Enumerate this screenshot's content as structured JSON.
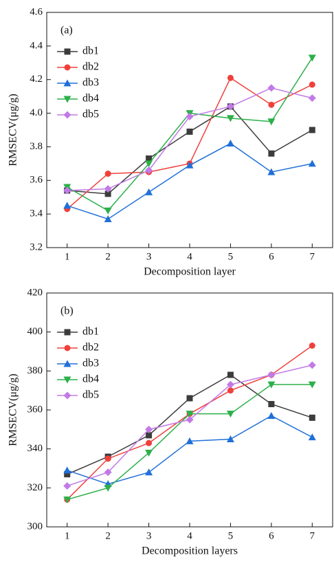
{
  "chart_data": [
    {
      "type": "line",
      "annotation": "(a)",
      "xlabel": "Decomposition layer",
      "ylabel": "RMSECV(μg/g)",
      "x": [
        1,
        2,
        3,
        4,
        5,
        6,
        7
      ],
      "xlim": [
        0.5,
        7.5
      ],
      "xticks": [
        1,
        2,
        3,
        4,
        5,
        6,
        7
      ],
      "ylim": [
        3.2,
        4.6
      ],
      "yticks": [
        3.2,
        3.4,
        3.6,
        3.8,
        {
          "value": 4,
          "label": "4.0"
        },
        4.2,
        4.4,
        4.6
      ],
      "legend": "upper left",
      "series": [
        {
          "name": "db1",
          "color": "#3c3c3c",
          "marker": "square",
          "values": [
            3.54,
            3.52,
            3.73,
            3.89,
            4.04,
            3.76,
            3.9
          ]
        },
        {
          "name": "db2",
          "color": "#f0403c",
          "marker": "circle",
          "values": [
            3.43,
            3.64,
            3.65,
            3.7,
            4.21,
            4.05,
            4.17
          ]
        },
        {
          "name": "db3",
          "color": "#2070d8",
          "marker": "triangle-up",
          "values": [
            3.45,
            3.37,
            3.53,
            3.69,
            3.82,
            3.65,
            3.7
          ]
        },
        {
          "name": "db4",
          "color": "#2cb04a",
          "marker": "triangle-down",
          "values": [
            3.56,
            3.42,
            3.7,
            4.0,
            3.97,
            3.95,
            4.33
          ]
        },
        {
          "name": "db5",
          "color": "#c27ae6",
          "marker": "diamond",
          "values": [
            3.54,
            3.55,
            3.66,
            3.98,
            4.04,
            4.15,
            4.09
          ]
        }
      ]
    },
    {
      "type": "line",
      "annotation": "(b)",
      "xlabel": "Decomposition layers",
      "ylabel": "RMSECV(μg/g)",
      "x": [
        1,
        2,
        3,
        4,
        5,
        6,
        7
      ],
      "xlim": [
        0.5,
        7.5
      ],
      "xticks": [
        1,
        2,
        3,
        4,
        5,
        6,
        7
      ],
      "ylim": [
        300,
        420
      ],
      "yticks": [
        300,
        320,
        340,
        360,
        380,
        400,
        420
      ],
      "legend": "upper left",
      "series": [
        {
          "name": "db1",
          "color": "#3c3c3c",
          "marker": "square",
          "values": [
            327,
            336,
            347,
            366,
            378,
            363,
            356
          ]
        },
        {
          "name": "db2",
          "color": "#f0403c",
          "marker": "circle",
          "values": [
            314,
            335,
            343,
            358,
            370,
            378,
            393
          ]
        },
        {
          "name": "db3",
          "color": "#2070d8",
          "marker": "triangle-up",
          "values": [
            329,
            322,
            328,
            344,
            345,
            357,
            346
          ]
        },
        {
          "name": "db4",
          "color": "#2cb04a",
          "marker": "triangle-down",
          "values": [
            314,
            320,
            338,
            358,
            358,
            373,
            373
          ]
        },
        {
          "name": "db5",
          "color": "#c27ae6",
          "marker": "diamond",
          "values": [
            321,
            328,
            350,
            355,
            373,
            378,
            383
          ]
        }
      ]
    }
  ]
}
